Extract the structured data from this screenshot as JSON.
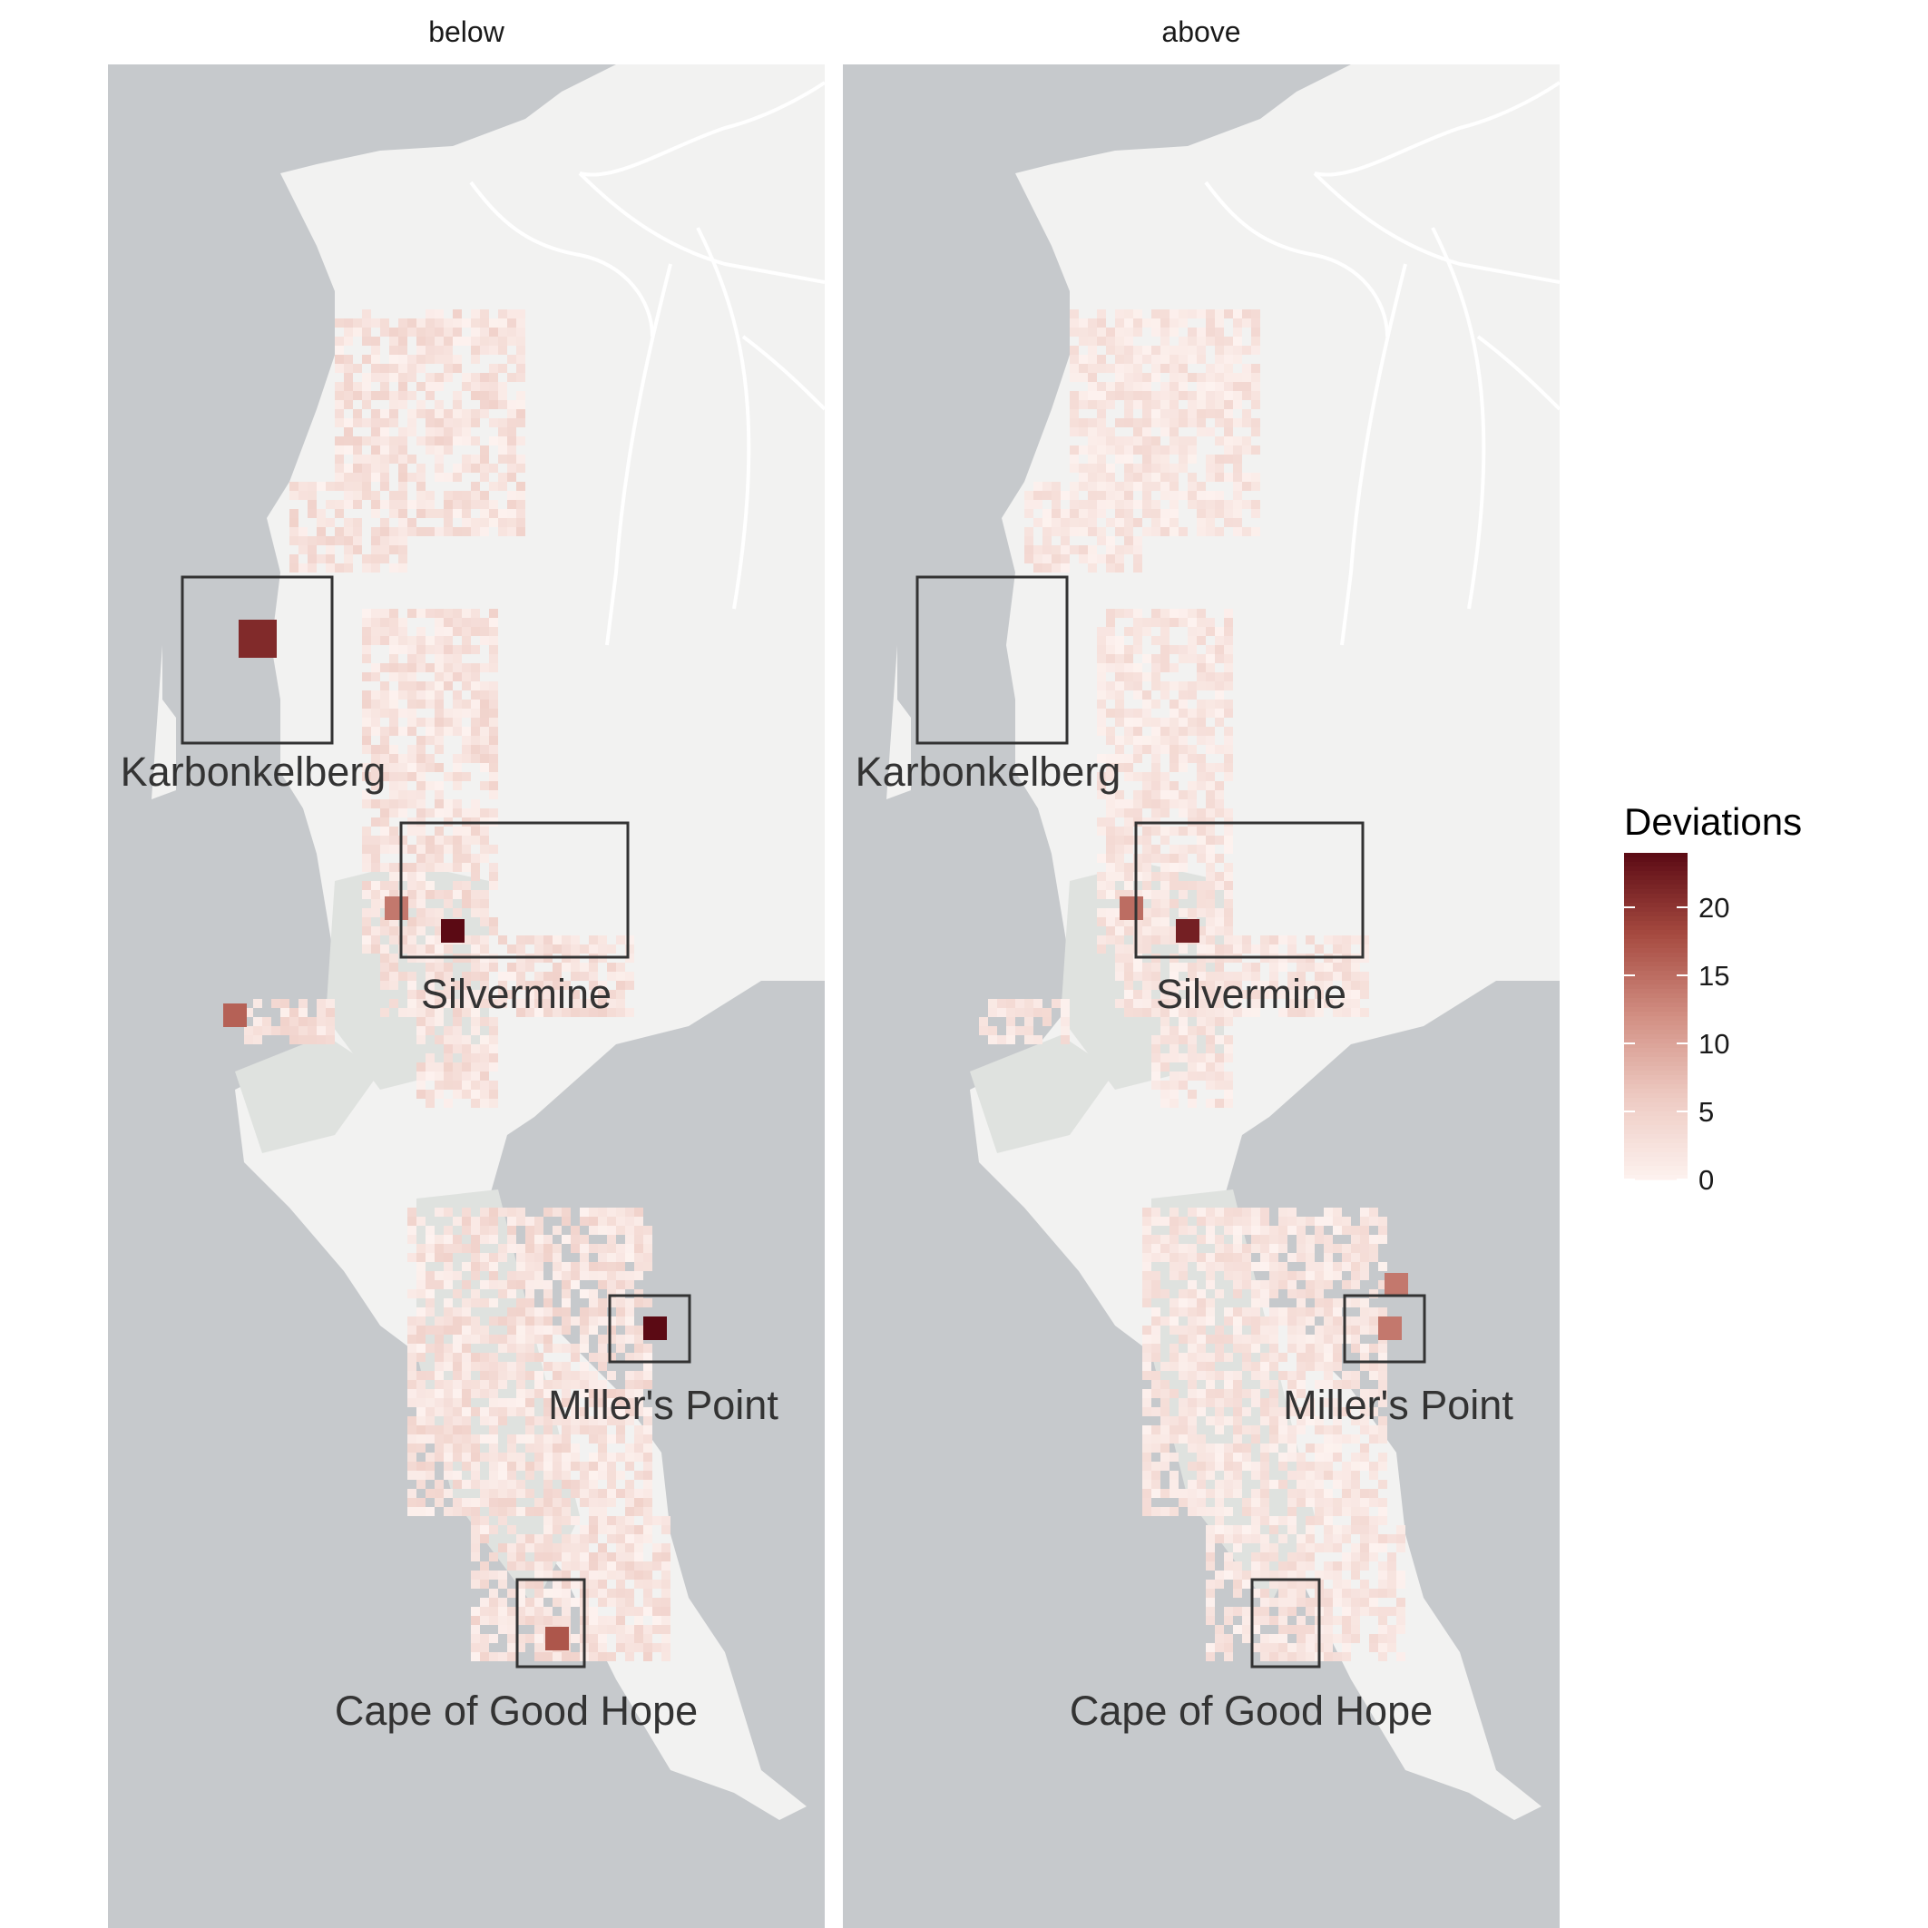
{
  "facets": [
    {
      "strip": "below",
      "hotspots": [
        {
          "region": "Karbonkelberg",
          "value": 21,
          "w": 2
        },
        {
          "region": "Silvermine",
          "value": 24,
          "w": 1
        },
        {
          "region": "Silvermine",
          "value": 14,
          "w": 1
        },
        {
          "region": "Karbonkelberg",
          "value": 16,
          "w": 1
        },
        {
          "region": "Miller's Point",
          "value": 24,
          "w": 1
        },
        {
          "region": "Cape of Good Hope",
          "value": 17,
          "w": 1
        }
      ]
    },
    {
      "strip": "above",
      "hotspots": [
        {
          "region": "Silvermine",
          "value": 22,
          "w": 1
        },
        {
          "region": "Silvermine",
          "value": 15,
          "w": 1
        },
        {
          "region": "Silvermine",
          "value": 14,
          "w": 1
        },
        {
          "region": "Miller's Point",
          "value": 14,
          "w": 1
        }
      ]
    }
  ],
  "regions": [
    "Karbonkelberg",
    "Silvermine",
    "Miller's Point",
    "Cape of Good Hope"
  ],
  "legend": {
    "title": "Deviations",
    "ticks": [
      "20",
      "15",
      "10",
      "5",
      "0"
    ],
    "tick_values": [
      20,
      15,
      10,
      5,
      0
    ],
    "min": 0,
    "max": 24,
    "colors": [
      "#fdf2ef",
      "#eecbc3",
      "#d28f83",
      "#a64a40",
      "#5b0a14"
    ]
  },
  "colors": {
    "water": "#c6c9cc",
    "land": "#f2f2f1",
    "park": "#dfe2df",
    "road": "#ffffff",
    "box": "#333333"
  }
}
